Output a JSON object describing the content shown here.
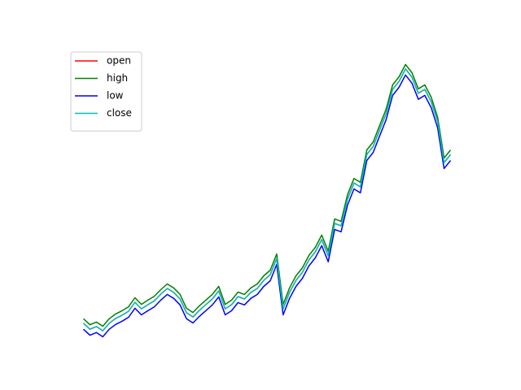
{
  "chart_data": {
    "type": "line",
    "x": [
      0,
      1,
      2,
      3,
      4,
      5,
      6,
      7,
      8,
      9,
      10,
      11,
      12,
      13,
      14,
      15,
      16,
      17,
      18,
      19,
      20,
      21,
      22,
      23,
      24,
      25,
      26,
      27,
      28,
      29,
      30,
      31,
      32,
      33,
      34,
      35,
      36,
      37,
      38,
      39,
      40,
      41,
      42,
      43,
      44,
      45,
      46,
      47,
      48,
      49,
      50,
      51,
      52,
      53,
      54,
      55,
      56,
      57
    ],
    "xlim": [
      -2.85,
      59.85
    ],
    "ylim": [
      0,
      100
    ],
    "legend": "upper left",
    "series": [
      {
        "name": "open",
        "color": "#ff0000",
        "values": [
          7.9,
          5.9,
          6.8,
          5.4,
          7.9,
          9.5,
          10.6,
          11.9,
          14.9,
          12.7,
          14.1,
          15.4,
          17.6,
          19.5,
          18.2,
          16.0,
          11.4,
          10.0,
          12.2,
          14.1,
          16.0,
          18.7,
          12.7,
          14.1,
          16.8,
          16.0,
          18.2,
          19.5,
          22.2,
          24.1,
          29.5,
          12.7,
          18.2,
          22.2,
          24.9,
          29.0,
          31.7,
          35.8,
          30.4,
          41.2,
          40.4,
          49.3,
          54.7,
          53.4,
          64.2,
          66.9,
          72.4,
          77.8,
          85.9,
          88.6,
          92.7,
          90.0,
          84.6,
          85.9,
          81.8,
          75.1,
          61.5,
          64.2
        ]
      },
      {
        "name": "high",
        "color": "#008000",
        "values": [
          9.4,
          7.4,
          8.3,
          6.9,
          9.4,
          11.0,
          12.1,
          13.4,
          16.4,
          14.2,
          15.6,
          16.9,
          19.1,
          21.0,
          19.7,
          17.5,
          12.9,
          11.5,
          13.7,
          15.6,
          17.5,
          20.2,
          14.2,
          15.6,
          18.3,
          17.5,
          19.7,
          21.0,
          23.7,
          25.6,
          31.0,
          14.2,
          19.7,
          23.7,
          26.4,
          30.5,
          33.2,
          37.3,
          31.9,
          42.7,
          41.9,
          50.8,
          56.2,
          54.9,
          65.7,
          68.4,
          73.9,
          79.3,
          87.4,
          90.1,
          94.2,
          91.5,
          86.1,
          87.4,
          83.3,
          76.6,
          63.0,
          65.7
        ]
      },
      {
        "name": "low",
        "color": "#0000ff",
        "values": [
          5.9,
          3.9,
          4.8,
          3.4,
          5.9,
          7.5,
          8.6,
          9.9,
          12.9,
          10.7,
          12.1,
          13.4,
          15.6,
          17.5,
          16.2,
          14.0,
          9.4,
          8.0,
          10.2,
          12.1,
          14.0,
          16.7,
          10.7,
          12.1,
          14.8,
          14.0,
          16.2,
          17.5,
          20.2,
          22.1,
          27.5,
          10.7,
          16.2,
          20.2,
          22.9,
          27.0,
          29.7,
          33.8,
          28.4,
          39.2,
          38.4,
          47.3,
          52.7,
          51.4,
          62.2,
          64.9,
          70.4,
          75.8,
          83.9,
          86.6,
          90.7,
          88.0,
          82.6,
          83.9,
          79.8,
          73.1,
          59.5,
          62.2
        ]
      },
      {
        "name": "close",
        "color": "#00bfbf",
        "values": [
          7.9,
          5.9,
          6.8,
          5.4,
          7.9,
          9.5,
          10.6,
          11.9,
          14.9,
          12.7,
          14.1,
          15.4,
          17.6,
          19.5,
          18.2,
          16.0,
          11.4,
          10.0,
          12.2,
          14.1,
          16.0,
          18.7,
          12.7,
          14.1,
          16.8,
          16.0,
          18.2,
          19.5,
          22.2,
          24.1,
          29.5,
          12.7,
          18.2,
          22.2,
          24.9,
          29.0,
          31.7,
          35.8,
          30.4,
          41.2,
          40.4,
          49.3,
          54.7,
          53.4,
          64.2,
          66.9,
          72.4,
          77.8,
          85.9,
          88.6,
          92.7,
          90.0,
          84.6,
          85.9,
          81.8,
          75.1,
          61.5,
          64.2
        ]
      }
    ]
  }
}
